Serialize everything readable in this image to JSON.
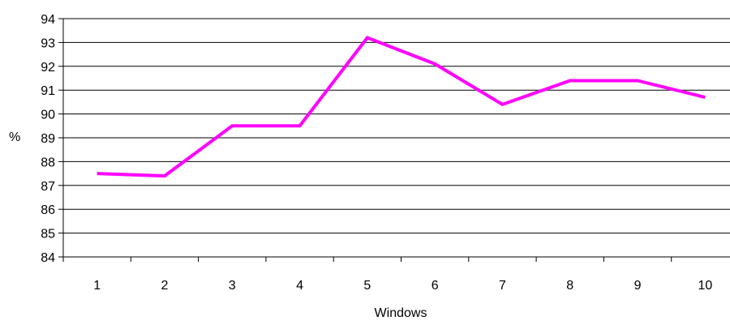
{
  "chart_data": {
    "type": "line",
    "xlabel": "Windows",
    "ylabel": "%",
    "categories": [
      "1",
      "2",
      "3",
      "4",
      "5",
      "6",
      "7",
      "8",
      "9",
      "10"
    ],
    "series": [
      {
        "values": [
          87.5,
          87.4,
          89.5,
          89.5,
          93.2,
          92.1,
          90.4,
          91.4,
          91.4,
          90.7
        ]
      }
    ],
    "ylim": [
      84,
      94
    ],
    "y_ticks": [
      "84",
      "85",
      "86",
      "87",
      "88",
      "89",
      "90",
      "91",
      "92",
      "93",
      "94"
    ],
    "grid": true,
    "legend": "none",
    "colors": {
      "line": "#ff00ff",
      "grid": "#000000",
      "axis": "#000000"
    }
  }
}
